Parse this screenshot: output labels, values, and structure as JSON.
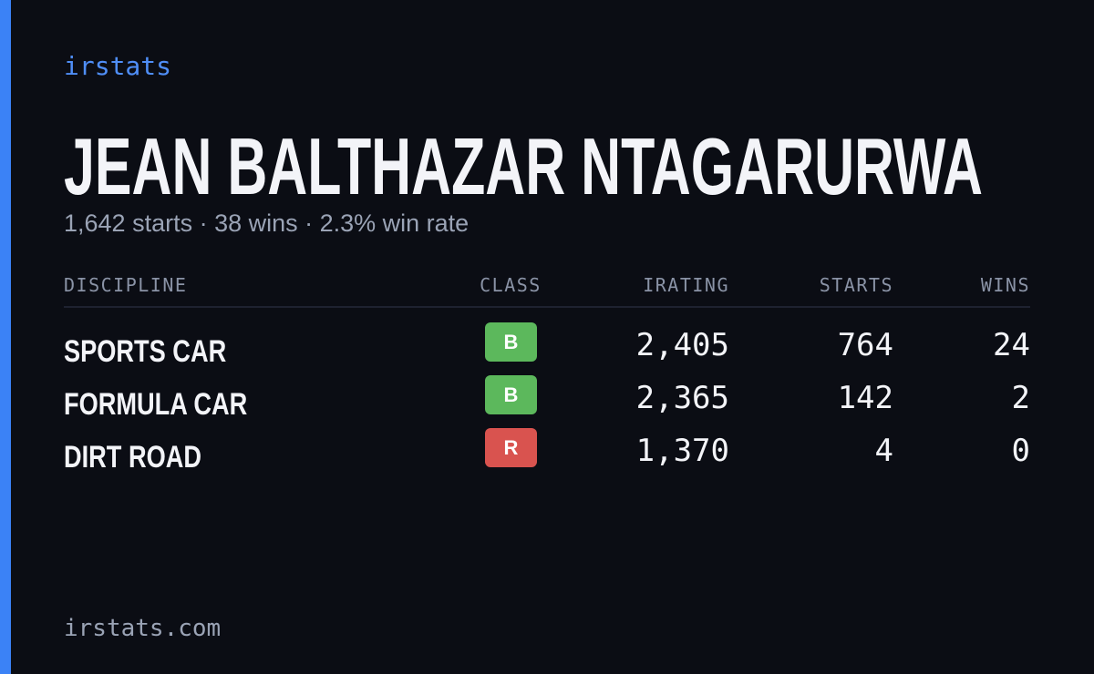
{
  "brand": "irstats",
  "player": {
    "name": "JEAN BALTHAZAR NTAGARURWA",
    "summary": "1,642 starts · 38 wins · 2.3% win rate"
  },
  "table": {
    "columns": [
      "DISCIPLINE",
      "CLASS",
      "IRATING",
      "STARTS",
      "WINS"
    ],
    "rows": [
      {
        "discipline": "SPORTS CAR",
        "class": "B",
        "class_color": "#5cb85c",
        "irating": "2,405",
        "starts": "764",
        "wins": "24"
      },
      {
        "discipline": "FORMULA CAR",
        "class": "B",
        "class_color": "#5cb85c",
        "irating": "2,365",
        "starts": "142",
        "wins": "2"
      },
      {
        "discipline": "DIRT ROAD",
        "class": "R",
        "class_color": "#d9534f",
        "irating": "1,370",
        "starts": "4",
        "wins": "0"
      }
    ]
  },
  "footer": "irstats.com"
}
